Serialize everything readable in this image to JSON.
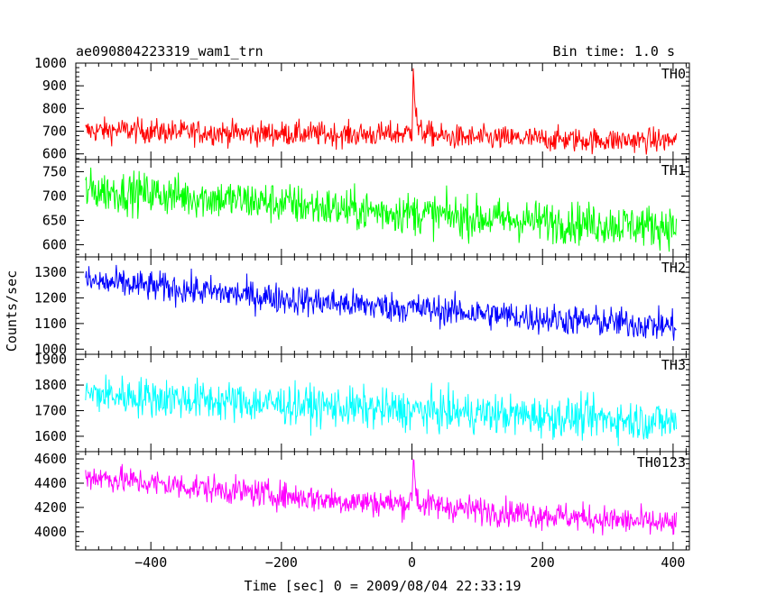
{
  "header": {
    "title": "ae090804223319_wam1_trn",
    "bin_time": "Bin time: 1.0 s"
  },
  "axes": {
    "ylabel": "Counts/sec",
    "xlabel": "Time [sec] 0 = 2009/08/04 22:33:19"
  },
  "chart_data": [
    {
      "type": "line",
      "name": "TH0",
      "color": "#ff0000",
      "xlim": [
        -515,
        425
      ],
      "ylim": [
        575,
        1000
      ],
      "yticks": [
        600,
        700,
        800,
        900,
        1000
      ],
      "ytick_labels": [
        "600",
        "700",
        "800",
        "900",
        "1000"
      ],
      "x": [
        -500,
        -450,
        -400,
        -350,
        -300,
        -250,
        -200,
        -150,
        -100,
        -50,
        -10,
        0,
        2,
        5,
        10,
        50,
        100,
        150,
        200,
        250,
        300,
        350,
        400
      ],
      "y": [
        700,
        705,
        700,
        695,
        695,
        690,
        690,
        688,
        685,
        685,
        690,
        700,
        1000,
        800,
        700,
        675,
        670,
        668,
        665,
        662,
        660,
        660,
        658
      ],
      "noise": 38
    },
    {
      "type": "line",
      "name": "TH1",
      "color": "#00ff00",
      "xlim": [
        -515,
        425
      ],
      "ylim": [
        575,
        775
      ],
      "yticks": [
        600,
        650,
        700,
        750
      ],
      "ytick_labels": [
        "600",
        "650",
        "700",
        "750"
      ],
      "x": [
        -500,
        -400,
        -300,
        -200,
        -100,
        0,
        100,
        200,
        300,
        400
      ],
      "y": [
        712,
        705,
        695,
        685,
        672,
        665,
        655,
        648,
        642,
        638
      ],
      "noise": 30
    },
    {
      "type": "line",
      "name": "TH2",
      "color": "#0000ff",
      "xlim": [
        -515,
        425
      ],
      "ylim": [
        980,
        1360
      ],
      "yticks": [
        1000,
        1100,
        1200,
        1300
      ],
      "ytick_labels": [
        "1000",
        "1100",
        "1200",
        "1300"
      ],
      "x": [
        -500,
        -400,
        -300,
        -200,
        -100,
        0,
        100,
        200,
        300,
        400
      ],
      "y": [
        1265,
        1245,
        1222,
        1198,
        1175,
        1160,
        1140,
        1120,
        1105,
        1090
      ],
      "noise": 42
    },
    {
      "type": "line",
      "name": "TH3",
      "color": "#00ffff",
      "xlim": [
        -515,
        425
      ],
      "ylim": [
        1540,
        1920
      ],
      "yticks": [
        1600,
        1700,
        1800,
        1900
      ],
      "ytick_labels": [
        "1600",
        "1700",
        "1800",
        "1900"
      ],
      "x": [
        -500,
        -400,
        -300,
        -200,
        -100,
        0,
        100,
        200,
        300,
        400
      ],
      "y": [
        1765,
        1752,
        1738,
        1725,
        1712,
        1700,
        1690,
        1678,
        1668,
        1655
      ],
      "noise": 55
    },
    {
      "type": "line",
      "name": "TH0123",
      "color": "#ff00ff",
      "xlim": [
        -515,
        425
      ],
      "ylim": [
        3850,
        4660
      ],
      "yticks": [
        4000,
        4200,
        4400,
        4600
      ],
      "ytick_labels": [
        "4000",
        "4200",
        "4400",
        "4600"
      ],
      "xticks": [
        -400,
        -200,
        0,
        200,
        400
      ],
      "xtick_labels": [
        "−400",
        "−200",
        "0",
        "200",
        "400"
      ],
      "x": [
        -500,
        -400,
        -300,
        -200,
        -100,
        -10,
        0,
        2,
        5,
        10,
        100,
        200,
        300,
        400
      ],
      "y": [
        4460,
        4400,
        4350,
        4300,
        4250,
        4230,
        4260,
        4640,
        4400,
        4230,
        4180,
        4140,
        4100,
        4060
      ],
      "noise": 80
    }
  ]
}
